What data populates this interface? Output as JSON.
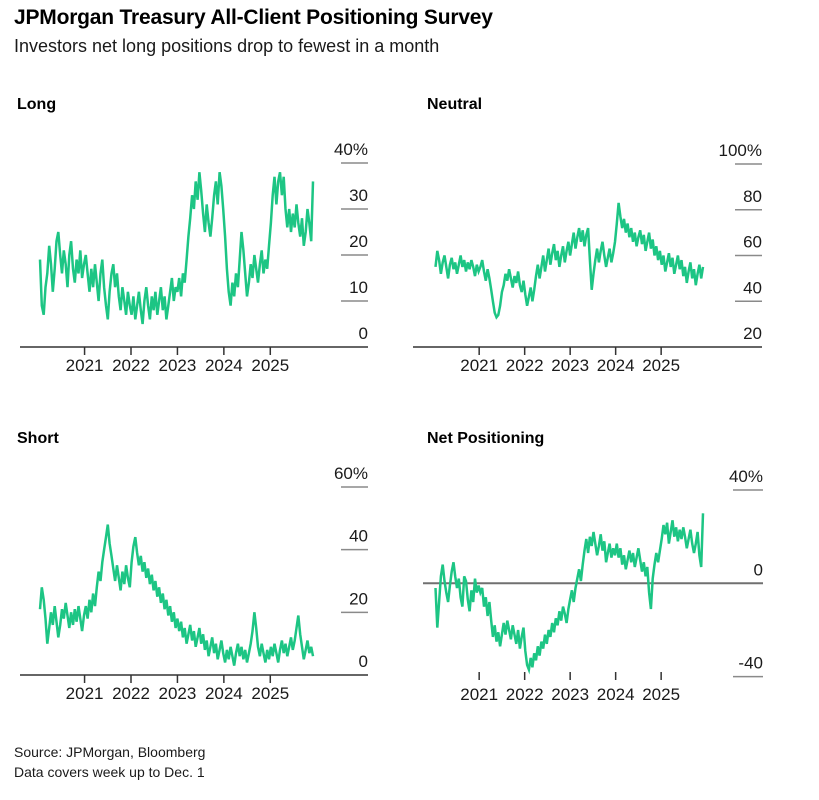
{
  "header": {
    "title": "JPMorgan Treasury All-Client Positioning Survey",
    "subtitle": "Investors net long positions drop to fewest in a month"
  },
  "footer": {
    "source": "Source: JPMorgan, Bloomberg",
    "note": "Data covers week up to Dec. 1"
  },
  "colors": {
    "line_green": "#1dc584",
    "axis_dark": "#333333",
    "tick_gray": "#8a8a8a",
    "zero_line_gray": "#707070",
    "text_black": "#000000"
  },
  "chart_data": [
    {
      "name": "long",
      "title": "Long",
      "type": "line",
      "x_start": 2020.04,
      "x_end": 2025.92,
      "x_ticks": [
        {
          "value": 2021,
          "label": "2021"
        },
        {
          "value": 2022,
          "label": "2022"
        },
        {
          "value": 2023,
          "label": "2023"
        },
        {
          "value": 2024,
          "label": "2024"
        },
        {
          "value": 2025,
          "label": "2025"
        }
      ],
      "y_ticks": [
        {
          "value": 40,
          "label": "40%"
        },
        {
          "value": 30,
          "label": "30"
        },
        {
          "value": 20,
          "label": "20"
        },
        {
          "value": 10,
          "label": "10"
        },
        {
          "value": 0,
          "label": "0"
        }
      ],
      "ylim": [
        0,
        40
      ],
      "grid": false,
      "baseline_axis": true,
      "zero_line": false,
      "values": [
        19,
        9,
        7,
        13,
        16,
        22,
        18,
        12,
        17,
        23,
        25,
        20,
        16,
        21,
        18,
        13,
        20,
        23,
        17,
        14,
        19,
        16,
        21,
        15,
        18,
        20,
        16,
        12,
        17,
        13,
        18,
        14,
        10,
        16,
        19,
        13,
        9,
        6,
        12,
        16,
        18,
        13,
        16,
        11,
        8,
        13,
        10,
        7,
        12,
        9,
        7,
        11,
        6,
        9,
        12,
        8,
        5,
        10,
        13,
        9,
        6,
        11,
        8,
        12,
        7,
        10,
        13,
        8,
        11,
        6,
        9,
        12,
        15,
        10,
        13,
        12,
        15,
        11,
        16,
        14,
        19,
        24,
        28,
        33,
        30,
        36,
        32,
        38,
        34,
        29,
        25,
        31,
        27,
        24,
        28,
        33,
        36,
        31,
        38,
        35,
        30,
        24,
        17,
        12,
        9,
        14,
        11,
        16,
        13,
        19,
        25,
        21,
        16,
        11,
        14,
        18,
        15,
        20,
        17,
        14,
        18,
        21,
        16,
        19,
        17,
        22,
        27,
        33,
        37,
        31,
        36,
        38,
        33,
        37,
        30,
        26,
        30,
        25,
        29,
        26,
        31,
        27,
        24,
        28,
        22,
        25,
        30,
        27,
        23,
        36
      ]
    },
    {
      "name": "neutral",
      "title": "Neutral",
      "type": "line",
      "x_start": 2020.04,
      "x_end": 2025.92,
      "x_ticks": [
        {
          "value": 2021,
          "label": "2021"
        },
        {
          "value": 2022,
          "label": "2022"
        },
        {
          "value": 2023,
          "label": "2023"
        },
        {
          "value": 2024,
          "label": "2024"
        },
        {
          "value": 2025,
          "label": "2025"
        }
      ],
      "y_ticks": [
        {
          "value": 100,
          "label": "100%"
        },
        {
          "value": 80,
          "label": "80"
        },
        {
          "value": 60,
          "label": "60"
        },
        {
          "value": 40,
          "label": "40"
        },
        {
          "value": 20,
          "label": "20"
        }
      ],
      "ylim": [
        20,
        100
      ],
      "grid": false,
      "baseline_axis": true,
      "zero_line": false,
      "values": [
        55,
        62,
        58,
        52,
        57,
        60,
        55,
        50,
        56,
        59,
        54,
        57,
        52,
        56,
        60,
        55,
        58,
        53,
        57,
        54,
        58,
        55,
        51,
        56,
        53,
        55,
        58,
        53,
        49,
        54,
        50,
        45,
        40,
        35,
        33,
        34,
        38,
        44,
        47,
        52,
        49,
        54,
        50,
        46,
        51,
        48,
        53,
        47,
        44,
        49,
        43,
        38,
        42,
        46,
        40,
        45,
        51,
        56,
        50,
        55,
        60,
        53,
        58,
        63,
        56,
        61,
        65,
        58,
        62,
        55,
        60,
        64,
        57,
        62,
        66,
        60,
        65,
        70,
        63,
        68,
        72,
        66,
        71,
        64,
        69,
        72,
        58,
        45,
        52,
        58,
        63,
        57,
        62,
        66,
        60,
        55,
        59,
        63,
        57,
        61,
        66,
        74,
        83,
        77,
        72,
        76,
        70,
        74,
        68,
        72,
        66,
        70,
        64,
        68,
        71,
        65,
        69,
        62,
        66,
        70,
        63,
        67,
        60,
        64,
        58,
        62,
        56,
        60,
        53,
        57,
        61,
        55,
        59,
        52,
        56,
        60,
        54,
        58,
        51,
        55,
        48,
        53,
        57,
        50,
        54,
        47,
        52,
        56,
        50,
        55
      ]
    },
    {
      "name": "short",
      "title": "Short",
      "type": "line",
      "x_start": 2020.04,
      "x_end": 2025.92,
      "x_ticks": [
        {
          "value": 2021,
          "label": "2021"
        },
        {
          "value": 2022,
          "label": "2022"
        },
        {
          "value": 2023,
          "label": "2023"
        },
        {
          "value": 2024,
          "label": "2024"
        },
        {
          "value": 2025,
          "label": "2025"
        }
      ],
      "y_ticks": [
        {
          "value": 60,
          "label": "60%"
        },
        {
          "value": 40,
          "label": "40"
        },
        {
          "value": 20,
          "label": "20"
        },
        {
          "value": 0,
          "label": "0"
        }
      ],
      "ylim": [
        0,
        60
      ],
      "grid": false,
      "baseline_axis": true,
      "zero_line": false,
      "values": [
        21,
        28,
        24,
        18,
        10,
        15,
        20,
        16,
        22,
        17,
        12,
        16,
        21,
        18,
        23,
        19,
        15,
        20,
        16,
        21,
        17,
        22,
        18,
        14,
        19,
        22,
        18,
        24,
        20,
        26,
        22,
        28,
        33,
        30,
        36,
        40,
        44,
        48,
        42,
        38,
        34,
        30,
        35,
        31,
        27,
        33,
        29,
        35,
        31,
        28,
        36,
        41,
        44,
        39,
        35,
        38,
        33,
        36,
        31,
        34,
        29,
        32,
        27,
        30,
        25,
        28,
        23,
        26,
        21,
        24,
        19,
        22,
        17,
        20,
        15,
        18,
        14,
        17,
        12,
        15,
        10,
        13,
        16,
        11,
        14,
        9,
        12,
        15,
        10,
        13,
        8,
        11,
        6,
        9,
        12,
        7,
        10,
        5,
        8,
        11,
        7,
        4,
        8,
        5,
        9,
        6,
        3,
        7,
        10,
        6,
        9,
        5,
        8,
        4,
        7,
        10,
        14,
        20,
        15,
        9,
        6,
        10,
        7,
        4,
        8,
        5,
        9,
        6,
        10,
        7,
        4,
        8,
        11,
        7,
        10,
        6,
        9,
        12,
        8,
        11,
        15,
        19,
        13,
        9,
        5,
        8,
        11,
        7,
        9,
        6
      ]
    },
    {
      "name": "net-positioning",
      "title": "Net Positioning",
      "type": "line",
      "x_start": 2020.04,
      "x_end": 2025.92,
      "x_ticks": [
        {
          "value": 2021,
          "label": "2021"
        },
        {
          "value": 2022,
          "label": "2022"
        },
        {
          "value": 2023,
          "label": "2023"
        },
        {
          "value": 2024,
          "label": "2024"
        },
        {
          "value": 2025,
          "label": "2025"
        }
      ],
      "y_ticks": [
        {
          "value": 40,
          "label": "40%"
        },
        {
          "value": 0,
          "label": "0"
        },
        {
          "value": -40,
          "label": "-40"
        }
      ],
      "ylim": [
        -40,
        40
      ],
      "grid": false,
      "baseline_axis": false,
      "zero_line": true,
      "values": [
        -2,
        -19,
        -8,
        3,
        8,
        1,
        -4,
        -8,
        -1,
        5,
        9,
        3,
        -2,
        2,
        -6,
        -10,
        3,
        1,
        -7,
        -12,
        -3,
        -8,
        2,
        -4,
        -1,
        -4,
        -2,
        -10,
        -6,
        -14,
        -8,
        -16,
        -23,
        -18,
        -25,
        -21,
        -27,
        -22,
        -17,
        -22,
        -16,
        -20,
        -24,
        -18,
        -22,
        -26,
        -20,
        -28,
        -23,
        -19,
        -29,
        -35,
        -37,
        -32,
        -36,
        -30,
        -33,
        -27,
        -31,
        -25,
        -28,
        -22,
        -26,
        -20,
        -23,
        -17,
        -21,
        -15,
        -18,
        -12,
        -16,
        -10,
        -13,
        -17,
        -11,
        -7,
        -3,
        -8,
        -2,
        2,
        6,
        1,
        8,
        14,
        19,
        13,
        20,
        16,
        22,
        17,
        12,
        16,
        21,
        14,
        18,
        9,
        13,
        17,
        11,
        15,
        12,
        17,
        11,
        15,
        8,
        12,
        6,
        10,
        14,
        9,
        13,
        7,
        11,
        15,
        10,
        5,
        9,
        3,
        7,
        -4,
        -11,
        2,
        8,
        13,
        9,
        14,
        19,
        25,
        21,
        26,
        17,
        22,
        27,
        20,
        24,
        18,
        23,
        19,
        24,
        20,
        15,
        19,
        23,
        17,
        13,
        17,
        22,
        12,
        7,
        30
      ]
    }
  ]
}
